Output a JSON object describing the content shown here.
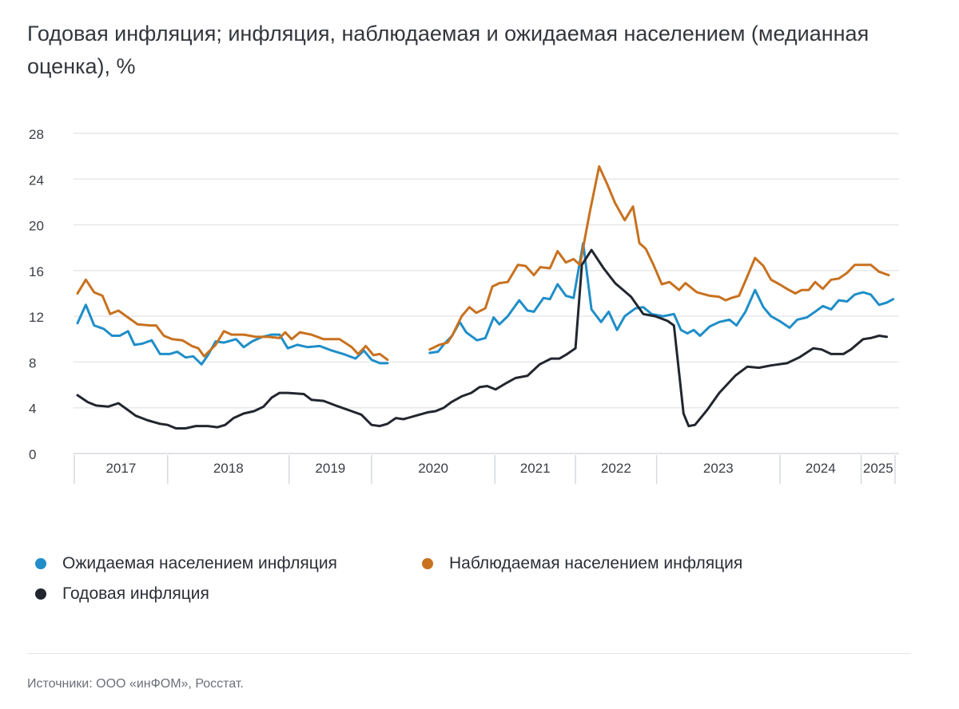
{
  "title": "Годовая инфляция; инфляция, наблюдаемая и ожидаемая населением (медианная оценка), %",
  "source": "Источники: ООО «инФОМ», Росстат.",
  "chart_data": {
    "type": "line",
    "title": "Годовая инфляция; инфляция, наблюдаемая и ожидаемая населением (медианная оценка), %",
    "xlabel": "",
    "ylabel": "%",
    "ylim": [
      0,
      28
    ],
    "yticks": [
      0,
      4,
      8,
      12,
      16,
      20,
      24,
      28
    ],
    "xlim": [
      0,
      128.4
    ],
    "x_unit": "observation index (approximate, survey waves)",
    "grid": true,
    "legend_position": "bottom",
    "year_bands": [
      {
        "label": "2017",
        "from": 0,
        "to": 14.6
      },
      {
        "label": "2018",
        "from": 14.6,
        "to": 33.6
      },
      {
        "label": "2019",
        "from": 33.6,
        "to": 46.5
      },
      {
        "label": "2020",
        "from": 46.5,
        "to": 65.8
      },
      {
        "label": "2021",
        "from": 65.8,
        "to": 78.4
      },
      {
        "label": "2022",
        "from": 78.4,
        "to": 91.1
      },
      {
        "label": "2023",
        "from": 91.1,
        "to": 110.4
      },
      {
        "label": "2024",
        "from": 110.4,
        "to": 123.1
      },
      {
        "label": "2025",
        "from": 123.1,
        "to": 128.4
      }
    ],
    "series": [
      {
        "name": "Ожидаемая населением инфляция",
        "color": "#1f8ec8",
        "points": [
          [
            0.5,
            11.4
          ],
          [
            1.8,
            13.0
          ],
          [
            3.1,
            11.2
          ],
          [
            4.6,
            10.9
          ],
          [
            5.9,
            10.3
          ],
          [
            7.1,
            10.3
          ],
          [
            8.4,
            10.7
          ],
          [
            9.4,
            9.5
          ],
          [
            10.6,
            9.6
          ],
          [
            12.1,
            9.9
          ],
          [
            13.4,
            8.7
          ],
          [
            14.9,
            8.7
          ],
          [
            16.1,
            8.9
          ],
          [
            17.4,
            8.4
          ],
          [
            18.6,
            8.5
          ],
          [
            19.9,
            7.8
          ],
          [
            20.9,
            8.6
          ],
          [
            22.1,
            9.8
          ],
          [
            23.4,
            9.7
          ],
          [
            25.3,
            10.0
          ],
          [
            26.5,
            9.3
          ],
          [
            27.8,
            9.8
          ],
          [
            29.4,
            10.2
          ],
          [
            30.9,
            10.4
          ],
          [
            32.1,
            10.4
          ],
          [
            33.4,
            9.2
          ],
          [
            34.9,
            9.5
          ],
          [
            36.5,
            9.3
          ],
          [
            38.4,
            9.4
          ],
          [
            40.3,
            9.0
          ],
          [
            42.1,
            8.7
          ],
          [
            44,
            8.3
          ],
          [
            45.3,
            9.0
          ],
          [
            46.5,
            8.2
          ],
          [
            47.8,
            7.9
          ],
          [
            49,
            7.9
          ],
          null,
          [
            55.6,
            8.8
          ],
          [
            56.9,
            8.9
          ],
          [
            57.9,
            9.6
          ],
          [
            59.1,
            10.3
          ],
          [
            60.3,
            11.5
          ],
          [
            61.3,
            10.6
          ],
          [
            63,
            9.9
          ],
          [
            64.3,
            10.1
          ],
          [
            65.6,
            11.9
          ],
          [
            66.5,
            11.3
          ],
          [
            67.8,
            12.0
          ],
          [
            69.6,
            13.4
          ],
          [
            70.9,
            12.5
          ],
          [
            71.9,
            12.4
          ],
          [
            73.4,
            13.6
          ],
          [
            74.4,
            13.5
          ],
          [
            75.6,
            14.8
          ],
          [
            76.9,
            13.8
          ],
          [
            78.1,
            13.6
          ],
          [
            79.6,
            18.4
          ],
          [
            80.9,
            12.6
          ],
          [
            82.4,
            11.5
          ],
          [
            83.6,
            12.4
          ],
          [
            84.9,
            10.8
          ],
          [
            86.1,
            12.0
          ],
          [
            87.8,
            12.7
          ],
          [
            89,
            12.8
          ],
          [
            90.3,
            12.2
          ],
          [
            92.1,
            12.0
          ],
          [
            93.8,
            12.2
          ],
          [
            94.9,
            10.8
          ],
          [
            95.9,
            10.5
          ],
          [
            96.9,
            10.8
          ],
          [
            97.9,
            10.3
          ],
          [
            99.4,
            11.1
          ],
          [
            100.9,
            11.5
          ],
          [
            102.5,
            11.7
          ],
          [
            103.6,
            11.2
          ],
          [
            105,
            12.4
          ],
          [
            106.5,
            14.3
          ],
          [
            107.8,
            12.8
          ],
          [
            109,
            12.0
          ],
          [
            110.3,
            11.6
          ],
          [
            111.9,
            11.0
          ],
          [
            113.1,
            11.7
          ],
          [
            114.6,
            11.9
          ],
          [
            115.9,
            12.4
          ],
          [
            117.1,
            12.9
          ],
          [
            118.4,
            12.6
          ],
          [
            119.6,
            13.4
          ],
          [
            120.9,
            13.3
          ],
          [
            122.1,
            13.9
          ],
          [
            123.4,
            14.1
          ],
          [
            124.6,
            13.9
          ],
          [
            125.9,
            13.0
          ],
          [
            127.1,
            13.2
          ],
          [
            128.1,
            13.5
          ]
        ]
      },
      {
        "name": "Наблюдаемая населением инфляция",
        "color": "#c8711f",
        "points": [
          [
            0.5,
            14.0
          ],
          [
            1.8,
            15.2
          ],
          [
            3.1,
            14.1
          ],
          [
            4.4,
            13.8
          ],
          [
            5.6,
            12.2
          ],
          [
            6.9,
            12.5
          ],
          [
            8.4,
            11.9
          ],
          [
            9.9,
            11.3
          ],
          [
            11.9,
            11.2
          ],
          [
            12.8,
            11.2
          ],
          [
            14,
            10.3
          ],
          [
            15.3,
            10.0
          ],
          [
            16.9,
            9.9
          ],
          [
            18.4,
            9.4
          ],
          [
            19.4,
            9.2
          ],
          [
            20.3,
            8.5
          ],
          [
            22.1,
            9.5
          ],
          [
            23.4,
            10.7
          ],
          [
            24.6,
            10.4
          ],
          [
            26.5,
            10.4
          ],
          [
            28.4,
            10.2
          ],
          [
            30.3,
            10.2
          ],
          [
            32.1,
            10.1
          ],
          [
            33,
            10.6
          ],
          [
            34,
            10.0
          ],
          [
            35.3,
            10.6
          ],
          [
            37.1,
            10.4
          ],
          [
            39,
            10.0
          ],
          [
            41.5,
            10.0
          ],
          [
            43.4,
            9.3
          ],
          [
            44.4,
            8.7
          ],
          [
            45.6,
            9.4
          ],
          [
            46.8,
            8.6
          ],
          [
            47.8,
            8.7
          ],
          [
            49,
            8.2
          ],
          null,
          [
            55.6,
            9.1
          ],
          [
            57.1,
            9.5
          ],
          [
            58.4,
            9.7
          ],
          [
            59.1,
            10.3
          ],
          [
            60.6,
            12.0
          ],
          [
            61.8,
            12.8
          ],
          [
            62.9,
            12.3
          ],
          [
            64.3,
            12.7
          ],
          [
            65.4,
            14.6
          ],
          [
            66.5,
            14.9
          ],
          [
            67.8,
            15.0
          ],
          [
            69.4,
            16.5
          ],
          [
            70.6,
            16.4
          ],
          [
            71.9,
            15.6
          ],
          [
            72.9,
            16.3
          ],
          [
            74.4,
            16.2
          ],
          [
            75.6,
            17.7
          ],
          [
            76.9,
            16.7
          ],
          [
            78.1,
            17.0
          ],
          [
            79.1,
            16.5
          ],
          [
            80.6,
            21.0
          ],
          [
            82.1,
            25.1
          ],
          [
            83.4,
            23.5
          ],
          [
            84.6,
            21.9
          ],
          [
            86.1,
            20.4
          ],
          [
            87.4,
            21.6
          ],
          [
            88.4,
            18.4
          ],
          [
            89.4,
            17.9
          ],
          [
            90.6,
            16.5
          ],
          [
            91.9,
            14.8
          ],
          [
            93.1,
            15.0
          ],
          [
            94.6,
            14.3
          ],
          [
            95.6,
            14.9
          ],
          [
            97.4,
            14.1
          ],
          [
            99.4,
            13.8
          ],
          [
            100.9,
            13.7
          ],
          [
            101.9,
            13.4
          ],
          [
            102.8,
            13.6
          ],
          [
            104,
            13.8
          ],
          [
            105.3,
            15.5
          ],
          [
            106.5,
            17.1
          ],
          [
            107.8,
            16.4
          ],
          [
            109,
            15.2
          ],
          [
            110.3,
            14.8
          ],
          [
            111.5,
            14.4
          ],
          [
            112.8,
            14.0
          ],
          [
            113.8,
            14.3
          ],
          [
            114.9,
            14.3
          ],
          [
            115.9,
            15.0
          ],
          [
            117.1,
            14.4
          ],
          [
            118.4,
            15.2
          ],
          [
            119.6,
            15.3
          ],
          [
            120.9,
            15.8
          ],
          [
            122.1,
            16.5
          ],
          [
            123.4,
            16.5
          ],
          [
            124.6,
            16.5
          ],
          [
            125.9,
            15.9
          ],
          [
            127.4,
            15.6
          ]
        ]
      },
      {
        "name": "Годовая инфляция",
        "color": "#22262e",
        "points": [
          [
            0.5,
            5.1
          ],
          [
            2.1,
            4.5
          ],
          [
            3.4,
            4.2
          ],
          [
            5.3,
            4.1
          ],
          [
            6.9,
            4.4
          ],
          [
            8.4,
            3.8
          ],
          [
            9.6,
            3.3
          ],
          [
            11.5,
            2.9
          ],
          [
            13.4,
            2.6
          ],
          [
            14.6,
            2.5
          ],
          [
            15.9,
            2.2
          ],
          [
            17.4,
            2.2
          ],
          [
            19,
            2.4
          ],
          [
            20.9,
            2.4
          ],
          [
            22.4,
            2.3
          ],
          [
            23.6,
            2.5
          ],
          [
            24.9,
            3.1
          ],
          [
            26.5,
            3.5
          ],
          [
            28.1,
            3.7
          ],
          [
            29.6,
            4.1
          ],
          [
            30.9,
            4.9
          ],
          [
            32.1,
            5.3
          ],
          [
            33.4,
            5.3
          ],
          [
            35.9,
            5.2
          ],
          [
            37.1,
            4.7
          ],
          [
            39,
            4.6
          ],
          [
            40.9,
            4.2
          ],
          [
            43.4,
            3.7
          ],
          [
            44.9,
            3.4
          ],
          [
            46.5,
            2.5
          ],
          [
            47.8,
            2.4
          ],
          [
            49,
            2.6
          ],
          [
            50.3,
            3.1
          ],
          [
            51.5,
            3.0
          ],
          [
            53.4,
            3.3
          ],
          [
            55.3,
            3.6
          ],
          [
            56.5,
            3.7
          ],
          [
            57.8,
            4.0
          ],
          [
            59,
            4.5
          ],
          [
            60.6,
            5.0
          ],
          [
            62.1,
            5.3
          ],
          [
            63.4,
            5.8
          ],
          [
            64.6,
            5.9
          ],
          [
            65.9,
            5.6
          ],
          [
            67.4,
            6.1
          ],
          [
            69,
            6.6
          ],
          [
            70.9,
            6.8
          ],
          [
            72.8,
            7.8
          ],
          [
            74.6,
            8.3
          ],
          [
            75.9,
            8.3
          ],
          [
            77.1,
            8.7
          ],
          [
            78.4,
            9.2
          ],
          [
            79.4,
            16.5
          ],
          [
            80.9,
            17.8
          ],
          [
            82.8,
            16.2
          ],
          [
            84.6,
            14.9
          ],
          [
            87.1,
            13.7
          ],
          [
            89,
            12.2
          ],
          [
            90.9,
            12.0
          ],
          [
            92.8,
            11.6
          ],
          [
            93.8,
            11.2
          ],
          [
            95.3,
            3.5
          ],
          [
            96.1,
            2.4
          ],
          [
            97.1,
            2.5
          ],
          [
            99,
            3.8
          ],
          [
            100.9,
            5.3
          ],
          [
            103.4,
            6.8
          ],
          [
            105.3,
            7.6
          ],
          [
            107.1,
            7.5
          ],
          [
            109,
            7.7
          ],
          [
            111.5,
            7.9
          ],
          [
            113.4,
            8.4
          ],
          [
            115.6,
            9.2
          ],
          [
            116.9,
            9.1
          ],
          [
            118.4,
            8.7
          ],
          [
            120.3,
            8.7
          ],
          [
            121.5,
            9.1
          ],
          [
            123.4,
            10.0
          ],
          [
            124.6,
            10.1
          ],
          [
            125.9,
            10.3
          ],
          [
            127.1,
            10.2
          ]
        ]
      }
    ]
  }
}
